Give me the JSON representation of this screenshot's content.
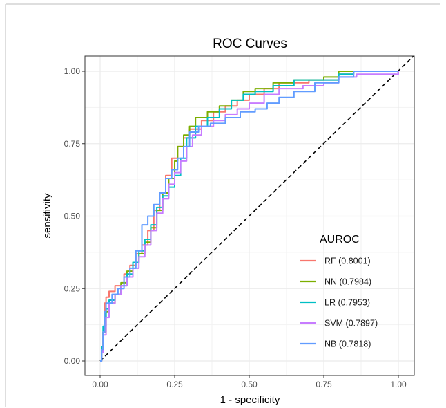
{
  "chart_data": {
    "type": "line",
    "title": "ROC Curves",
    "xlabel": "1 - specificity",
    "ylabel": "sensitivity",
    "xlim": [
      0,
      1
    ],
    "ylim": [
      0,
      1
    ],
    "x_ticks": [
      "0.00",
      "0.25",
      "0.50",
      "0.75",
      "1.00"
    ],
    "y_ticks": [
      "0.00",
      "0.25",
      "0.50",
      "0.75",
      "1.00"
    ],
    "grid": true,
    "legend": {
      "title": "AUROC",
      "position": "inside-bottom-right"
    },
    "reference_line": {
      "style": "dashed",
      "color": "#000000",
      "points": [
        [
          0,
          0
        ],
        [
          1,
          1
        ]
      ]
    },
    "series": [
      {
        "name": "RF (0.8001)",
        "color": "#F8766D",
        "points": [
          [
            0,
            0
          ],
          [
            0.005,
            0.05
          ],
          [
            0.01,
            0.1
          ],
          [
            0.015,
            0.2
          ],
          [
            0.02,
            0.22
          ],
          [
            0.03,
            0.24
          ],
          [
            0.05,
            0.26
          ],
          [
            0.08,
            0.3
          ],
          [
            0.1,
            0.33
          ],
          [
            0.12,
            0.37
          ],
          [
            0.14,
            0.4
          ],
          [
            0.16,
            0.45
          ],
          [
            0.18,
            0.52
          ],
          [
            0.2,
            0.58
          ],
          [
            0.22,
            0.64
          ],
          [
            0.24,
            0.7
          ],
          [
            0.26,
            0.74
          ],
          [
            0.28,
            0.77
          ],
          [
            0.3,
            0.8
          ],
          [
            0.34,
            0.83
          ],
          [
            0.38,
            0.86
          ],
          [
            0.42,
            0.88
          ],
          [
            0.46,
            0.9
          ],
          [
            0.5,
            0.92
          ],
          [
            0.55,
            0.94
          ],
          [
            0.6,
            0.96
          ],
          [
            0.7,
            0.97
          ],
          [
            0.8,
            0.99
          ],
          [
            0.85,
            1.0
          ],
          [
            1.0,
            1.0
          ]
        ]
      },
      {
        "name": "NN (0.7984)",
        "color": "#7CAE00",
        "points": [
          [
            0,
            0
          ],
          [
            0.005,
            0.04
          ],
          [
            0.01,
            0.1
          ],
          [
            0.02,
            0.17
          ],
          [
            0.03,
            0.2
          ],
          [
            0.05,
            0.23
          ],
          [
            0.07,
            0.27
          ],
          [
            0.09,
            0.31
          ],
          [
            0.11,
            0.34
          ],
          [
            0.13,
            0.37
          ],
          [
            0.15,
            0.41
          ],
          [
            0.17,
            0.46
          ],
          [
            0.19,
            0.52
          ],
          [
            0.21,
            0.58
          ],
          [
            0.23,
            0.63
          ],
          [
            0.25,
            0.69
          ],
          [
            0.26,
            0.74
          ],
          [
            0.28,
            0.78
          ],
          [
            0.3,
            0.81
          ],
          [
            0.32,
            0.84
          ],
          [
            0.36,
            0.86
          ],
          [
            0.4,
            0.88
          ],
          [
            0.44,
            0.9
          ],
          [
            0.48,
            0.93
          ],
          [
            0.52,
            0.94
          ],
          [
            0.58,
            0.96
          ],
          [
            0.65,
            0.97
          ],
          [
            0.75,
            0.98
          ],
          [
            0.8,
            1.0
          ],
          [
            1.0,
            1.0
          ]
        ]
      },
      {
        "name": "LR (0.7953)",
        "color": "#00BFC4",
        "points": [
          [
            0,
            0
          ],
          [
            0.005,
            0.05
          ],
          [
            0.01,
            0.12
          ],
          [
            0.02,
            0.18
          ],
          [
            0.03,
            0.21
          ],
          [
            0.05,
            0.23
          ],
          [
            0.07,
            0.26
          ],
          [
            0.09,
            0.3
          ],
          [
            0.11,
            0.34
          ],
          [
            0.13,
            0.38
          ],
          [
            0.15,
            0.42
          ],
          [
            0.17,
            0.47
          ],
          [
            0.19,
            0.53
          ],
          [
            0.21,
            0.57
          ],
          [
            0.23,
            0.6
          ],
          [
            0.25,
            0.64
          ],
          [
            0.27,
            0.7
          ],
          [
            0.29,
            0.77
          ],
          [
            0.32,
            0.81
          ],
          [
            0.36,
            0.84
          ],
          [
            0.4,
            0.87
          ],
          [
            0.44,
            0.9
          ],
          [
            0.48,
            0.92
          ],
          [
            0.52,
            0.93
          ],
          [
            0.58,
            0.95
          ],
          [
            0.65,
            0.97
          ],
          [
            0.72,
            0.97
          ],
          [
            0.8,
            0.99
          ],
          [
            0.85,
            1.0
          ],
          [
            1.0,
            1.0
          ]
        ]
      },
      {
        "name": "SVM (0.7897)",
        "color": "#C77CFF",
        "points": [
          [
            0,
            0
          ],
          [
            0.005,
            0.03
          ],
          [
            0.01,
            0.09
          ],
          [
            0.02,
            0.15
          ],
          [
            0.03,
            0.2
          ],
          [
            0.05,
            0.23
          ],
          [
            0.07,
            0.26
          ],
          [
            0.09,
            0.29
          ],
          [
            0.11,
            0.32
          ],
          [
            0.13,
            0.36
          ],
          [
            0.15,
            0.4
          ],
          [
            0.17,
            0.45
          ],
          [
            0.19,
            0.51
          ],
          [
            0.21,
            0.56
          ],
          [
            0.23,
            0.61
          ],
          [
            0.25,
            0.65
          ],
          [
            0.27,
            0.69
          ],
          [
            0.29,
            0.74
          ],
          [
            0.31,
            0.78
          ],
          [
            0.34,
            0.81
          ],
          [
            0.38,
            0.83
          ],
          [
            0.42,
            0.85
          ],
          [
            0.46,
            0.87
          ],
          [
            0.5,
            0.89
          ],
          [
            0.55,
            0.92
          ],
          [
            0.6,
            0.94
          ],
          [
            0.68,
            0.95
          ],
          [
            0.75,
            0.96
          ],
          [
            0.8,
            0.98
          ],
          [
            0.86,
            0.99
          ],
          [
            1.0,
            1.0
          ]
        ]
      },
      {
        "name": "NB (0.7818)",
        "color": "#619CFF",
        "points": [
          [
            0,
            0
          ],
          [
            0.005,
            0.04
          ],
          [
            0.01,
            0.1
          ],
          [
            0.015,
            0.17
          ],
          [
            0.02,
            0.2
          ],
          [
            0.04,
            0.23
          ],
          [
            0.06,
            0.25
          ],
          [
            0.08,
            0.29
          ],
          [
            0.1,
            0.32
          ],
          [
            0.12,
            0.38
          ],
          [
            0.14,
            0.47
          ],
          [
            0.16,
            0.5
          ],
          [
            0.18,
            0.54
          ],
          [
            0.2,
            0.58
          ],
          [
            0.22,
            0.63
          ],
          [
            0.24,
            0.66
          ],
          [
            0.26,
            0.7
          ],
          [
            0.28,
            0.74
          ],
          [
            0.3,
            0.79
          ],
          [
            0.33,
            0.81
          ],
          [
            0.37,
            0.82
          ],
          [
            0.42,
            0.84
          ],
          [
            0.47,
            0.86
          ],
          [
            0.52,
            0.87
          ],
          [
            0.56,
            0.89
          ],
          [
            0.6,
            0.91
          ],
          [
            0.65,
            0.93
          ],
          [
            0.72,
            0.96
          ],
          [
            0.8,
            0.98
          ],
          [
            0.85,
            1.0
          ],
          [
            1.0,
            1.0
          ]
        ]
      }
    ]
  }
}
